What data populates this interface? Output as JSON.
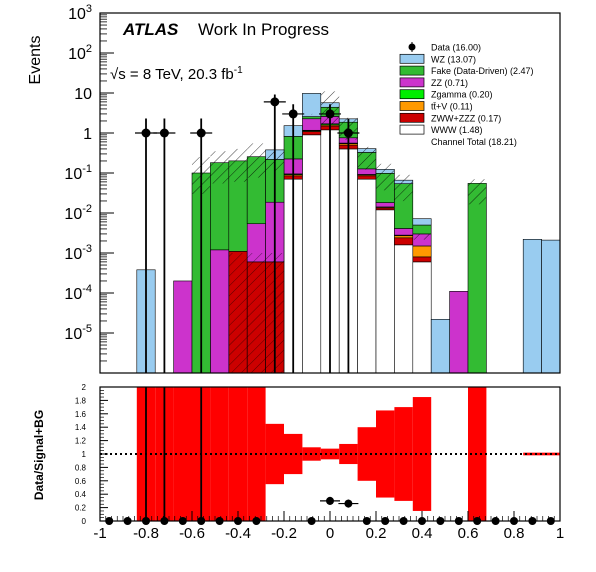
{
  "chart_data": [
    {
      "type": "bar",
      "stacked": true,
      "yscale": "log",
      "ylabel": "Events",
      "xlim": [
        -1,
        1
      ],
      "ylim": [
        1e-06,
        1000
      ],
      "ytick_labels": [
        {
          "v": 1000,
          "b": "10",
          "e": "3"
        },
        {
          "v": 100,
          "b": "10",
          "e": "2"
        },
        {
          "v": 10,
          "b": "10",
          "e": ""
        },
        {
          "v": 1,
          "b": "1",
          "e": ""
        },
        {
          "v": 0.1,
          "b": "10",
          "e": "-1"
        },
        {
          "v": 0.01,
          "b": "10",
          "e": "-2"
        },
        {
          "v": 0.001,
          "b": "10",
          "e": "-3"
        },
        {
          "v": 0.0001,
          "b": "10",
          "e": "-4"
        },
        {
          "v": 1e-05,
          "b": "10",
          "e": "-5"
        }
      ],
      "annotations": {
        "atlas": "ATLAS",
        "status": "Work In Progress",
        "energy_prefix": "√s = 8 TeV, 20.3 fb",
        "energy_exp": "-1"
      },
      "bin_edges": [
        -1,
        -0.92,
        -0.84,
        -0.76,
        -0.68,
        -0.6,
        -0.52,
        -0.44,
        -0.36,
        -0.28,
        -0.2,
        -0.12,
        -0.04,
        0.04,
        0.12,
        0.2,
        0.28,
        0.36,
        0.44,
        0.52,
        0.6,
        0.68,
        0.76,
        0.84,
        0.92,
        1
      ],
      "series": [
        {
          "name": "WWW (1.48)",
          "color": "#ffffff",
          "values": [
            0,
            0,
            0,
            0,
            0,
            0,
            0,
            0,
            0,
            0,
            0.07,
            0.9,
            1.2,
            0.4,
            0.07,
            0.012,
            0.0016,
            0.0006,
            0,
            0,
            0,
            0,
            0,
            0,
            0
          ]
        },
        {
          "name": "ZWW+ZZZ (0.17)",
          "color": "#cc0000",
          "values": [
            0,
            0,
            0,
            0,
            0,
            0,
            0,
            0.0011,
            0.0006,
            0.0006,
            0.015,
            0.18,
            0.3,
            0.1,
            0.015,
            0.0014,
            0.0008,
            0.0002,
            0,
            0,
            0,
            0,
            0,
            0,
            0
          ]
        },
        {
          "name": "tt̄+V (0.11)",
          "color": "#ff9900",
          "values": [
            0,
            0,
            0,
            0,
            0,
            0,
            0,
            0,
            0,
            0,
            0.006,
            0.05,
            0.1,
            0.04,
            0.005,
            0.0006,
            0.0003,
            0.0007,
            0,
            0,
            0,
            0,
            0,
            0,
            0
          ]
        },
        {
          "name": "Zgamma (0.20)",
          "color": "#00ee00",
          "values": [
            0,
            0,
            0,
            0,
            0,
            0,
            0,
            0,
            0,
            0,
            0.004,
            0.04,
            0.1,
            0.02,
            0.002,
            0.0002,
            0.0001,
            0,
            0,
            0,
            0,
            0,
            0,
            0,
            0
          ]
        },
        {
          "name": "ZZ (0.71)",
          "color": "#cc33cc",
          "values": [
            0,
            0,
            0,
            0,
            0.0002,
            0,
            0.0012,
            0,
            0.0048,
            0.018,
            0.13,
            1.1,
            0.9,
            0.2,
            0.035,
            0.004,
            0.0013,
            0.0015,
            0,
            0.00011,
            0,
            0,
            0,
            0,
            0
          ]
        },
        {
          "name": "Fake (Data-Driven) (2.47)",
          "color": "#33bb33",
          "values": [
            0,
            0,
            0,
            0,
            0,
            0.1,
            0.18,
            0.2,
            0.25,
            0.2,
            0.6,
            0.3,
            1.8,
            1.1,
            0.2,
            0.08,
            0.05,
            0.002,
            0,
            0,
            0.055,
            0,
            0,
            0,
            0
          ]
        },
        {
          "name": "WZ (13.07)",
          "color": "#99ccf0",
          "values": [
            0,
            0,
            0.00038,
            0,
            0,
            0,
            0,
            0,
            0,
            0.16,
            0.7,
            7.2,
            1.3,
            0.4,
            0.08,
            0.025,
            0.012,
            0.0022,
            2.2e-05,
            0,
            0,
            0,
            0,
            0.0022,
            0.0021
          ]
        }
      ],
      "legend_extra": {
        "name": "Channel Total  (18.21)"
      },
      "data": {
        "name": "Data (16.00)",
        "points": [
          {
            "x": -0.8,
            "y": 1
          },
          {
            "x": -0.72,
            "y": 1
          },
          {
            "x": -0.56,
            "y": 1
          },
          {
            "x": -0.24,
            "y": 6
          },
          {
            "x": -0.16,
            "y": 3
          },
          {
            "x": 0,
            "y": 3
          },
          {
            "x": 0.08,
            "y": 1
          }
        ]
      },
      "uncertainty": {
        "label": "hatched band",
        "upper": [
          0,
          0,
          0,
          0,
          0,
          0.25,
          0.35,
          0.4,
          0.55,
          0.35,
          0.45,
          3,
          11,
          2.4,
          0.45,
          0.17,
          0.09,
          0.003,
          0,
          0,
          0.07,
          0,
          0,
          0,
          0
        ]
      }
    },
    {
      "type": "bar",
      "ylabel": "Data/Signal+BG",
      "xlim": [
        -1,
        1
      ],
      "ylim": [
        0,
        2
      ],
      "xtick_labels": [
        "-1",
        "-0.8",
        "-0.6",
        "-0.4",
        "-0.2",
        "0",
        "0.2",
        "0.4",
        "0.6",
        "0.8",
        "1"
      ],
      "ytick_labels": [
        "0",
        "0.2",
        "0.4",
        "0.6",
        "0.8",
        "1",
        "1.2",
        "1.4",
        "1.6",
        "1.8",
        "2"
      ],
      "reference_line": 1,
      "band_low": [
        2,
        2,
        0,
        0,
        0,
        0,
        0,
        0,
        0,
        0.55,
        0.7,
        0.9,
        0.92,
        0.85,
        0.6,
        0.35,
        0.3,
        0.15,
        2,
        2,
        0,
        2,
        2,
        0.98,
        0.98
      ],
      "band_high": [
        2,
        2,
        2,
        2,
        2,
        2,
        2,
        2,
        2,
        1.45,
        1.3,
        1.1,
        1.08,
        1.15,
        1.4,
        1.65,
        1.7,
        1.85,
        2,
        2,
        2,
        2,
        2,
        1.02,
        1.02
      ],
      "ratio_points": [
        {
          "x": -0.96,
          "y": 0
        },
        {
          "x": -0.88,
          "y": 0
        },
        {
          "x": -0.8,
          "y": 0
        },
        {
          "x": -0.72,
          "y": 0
        },
        {
          "x": -0.64,
          "y": 0
        },
        {
          "x": -0.56,
          "y": 0
        },
        {
          "x": -0.48,
          "y": 0
        },
        {
          "x": -0.4,
          "y": 0
        },
        {
          "x": -0.32,
          "y": 0
        },
        {
          "x": -0.08,
          "y": 0
        },
        {
          "x": 0,
          "y": 0.3
        },
        {
          "x": 0.08,
          "y": 0.26
        },
        {
          "x": 0.16,
          "y": 0
        },
        {
          "x": 0.24,
          "y": 0
        },
        {
          "x": 0.32,
          "y": 0
        },
        {
          "x": 0.4,
          "y": 0
        },
        {
          "x": 0.48,
          "y": 0
        },
        {
          "x": 0.56,
          "y": 0
        },
        {
          "x": 0.64,
          "y": 0
        },
        {
          "x": 0.72,
          "y": 0
        },
        {
          "x": 0.8,
          "y": 0
        },
        {
          "x": 0.88,
          "y": 0
        },
        {
          "x": 0.96,
          "y": 0
        }
      ]
    }
  ]
}
